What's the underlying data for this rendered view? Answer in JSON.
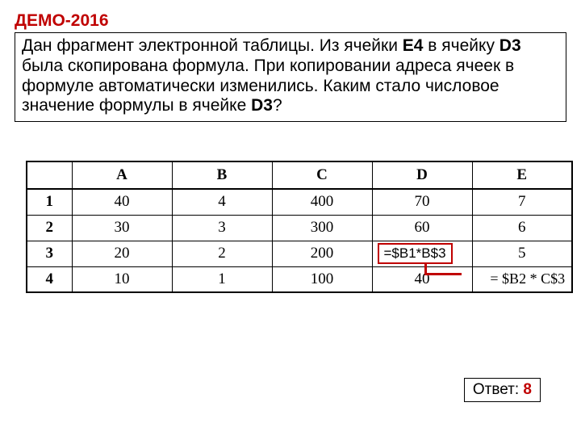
{
  "title": "ДЕМО-2016",
  "question": {
    "pre1": "Дан фрагмент электронной таблицы. Из ячейки ",
    "b1": "E4",
    "mid1": " в ячейку ",
    "b2": "D3",
    "line2": " была скопирована формула. При копировании адреса ячеек в формуле автоматически изменились. Каким стало числовое значение формулы в ячейке ",
    "b3": "D3",
    "end": "?"
  },
  "spreadsheet": {
    "headers": [
      "",
      "A",
      "B",
      "C",
      "D",
      "E"
    ],
    "rows": [
      {
        "label": "1",
        "cells": [
          "40",
          "4",
          "400",
          "70",
          "7"
        ]
      },
      {
        "label": "2",
        "cells": [
          "30",
          "3",
          "300",
          "60",
          "6"
        ]
      },
      {
        "label": "3",
        "cells": [
          "20",
          "2",
          "200",
          "",
          "5"
        ]
      },
      {
        "label": "4",
        "cells": [
          "10",
          "1",
          "100",
          "40",
          ""
        ]
      }
    ],
    "formula_d3": "=$B1*B$3",
    "formula_e4": "= $B2 * C$3",
    "colors": {
      "accent": "#c00000",
      "border": "#000000",
      "background": "#ffffff"
    },
    "fontsize_header": 19,
    "fontsize_cell": 19
  },
  "answer": {
    "label": "Ответ: ",
    "value": "8"
  }
}
